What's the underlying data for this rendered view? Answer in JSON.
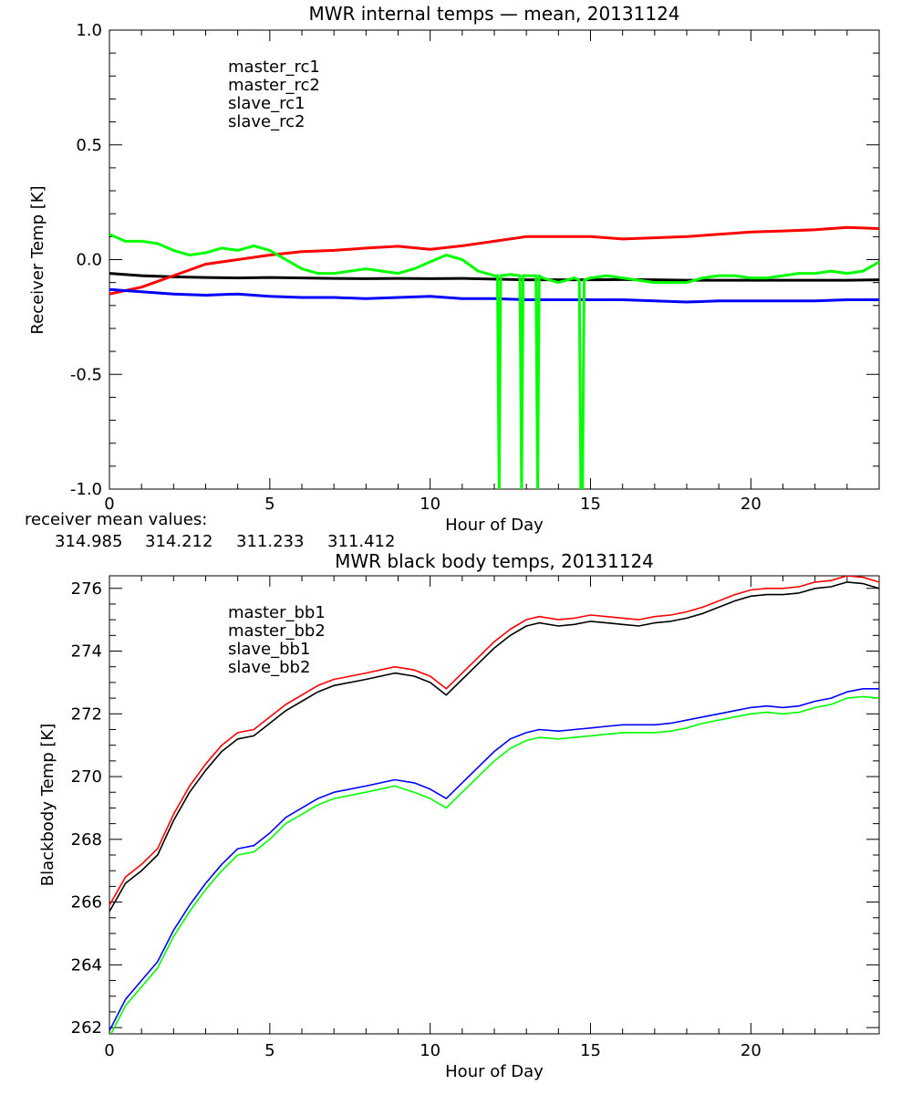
{
  "colors": {
    "black": "#000000",
    "red": "#ff0000",
    "blue": "#0000ff",
    "green": "#00ff00"
  },
  "chart_data": [
    {
      "type": "line",
      "title": "MWR internal temps — mean, 20131124",
      "xlabel": "Hour of Day",
      "ylabel": "Receiver Temp [K]",
      "xlim": [
        0,
        24
      ],
      "ylim": [
        -1.0,
        1.0
      ],
      "xticks": [
        0,
        5,
        10,
        15,
        20
      ],
      "xtick_labels": [
        "0",
        "5",
        "10",
        "15",
        "20"
      ],
      "yticks": [
        -1.0,
        -0.5,
        0.0,
        0.5,
        1.0
      ],
      "ytick_labels": [
        "-1.0",
        "-0.5",
        "0.0",
        "0.5",
        "1.0"
      ],
      "legend_position": "top-left",
      "grid": false,
      "series": [
        {
          "name": "master_rc1",
          "color": "#000000",
          "x": [
            0,
            1,
            2,
            3,
            4,
            5,
            6,
            7,
            8,
            9,
            10,
            11,
            12,
            13,
            14,
            15,
            16,
            17,
            18,
            19,
            20,
            21,
            22,
            23,
            24
          ],
          "y": [
            -0.06,
            -0.07,
            -0.075,
            -0.078,
            -0.08,
            -0.078,
            -0.08,
            -0.082,
            -0.083,
            -0.082,
            -0.083,
            -0.082,
            -0.085,
            -0.088,
            -0.088,
            -0.088,
            -0.087,
            -0.088,
            -0.09,
            -0.09,
            -0.09,
            -0.09,
            -0.09,
            -0.09,
            -0.088
          ]
        },
        {
          "name": "master_rc2",
          "color": "#ff0000",
          "x": [
            0,
            1,
            2,
            3,
            4,
            5,
            6,
            7,
            8,
            9,
            10,
            11,
            12,
            13,
            14,
            15,
            16,
            17,
            18,
            19,
            20,
            21,
            22,
            23,
            24
          ],
          "y": [
            -0.15,
            -0.12,
            -0.07,
            -0.02,
            0.0,
            0.02,
            0.035,
            0.04,
            0.05,
            0.058,
            0.045,
            0.06,
            0.08,
            0.1,
            0.1,
            0.1,
            0.09,
            0.095,
            0.1,
            0.11,
            0.12,
            0.125,
            0.13,
            0.14,
            0.135
          ]
        },
        {
          "name": "slave_rc1",
          "color": "#0000ff",
          "x": [
            0,
            1,
            2,
            3,
            4,
            5,
            6,
            7,
            8,
            9,
            10,
            11,
            12,
            13,
            14,
            15,
            16,
            17,
            18,
            19,
            20,
            21,
            22,
            23,
            24
          ],
          "y": [
            -0.13,
            -0.14,
            -0.15,
            -0.155,
            -0.15,
            -0.16,
            -0.165,
            -0.165,
            -0.17,
            -0.165,
            -0.16,
            -0.17,
            -0.17,
            -0.175,
            -0.175,
            -0.175,
            -0.175,
            -0.18,
            -0.185,
            -0.18,
            -0.18,
            -0.18,
            -0.18,
            -0.175,
            -0.175
          ]
        },
        {
          "name": "slave_rc2",
          "color": "#00ff00",
          "x": [
            0,
            0.5,
            1,
            1.5,
            2,
            2.5,
            3,
            3.5,
            4,
            4.5,
            5,
            5.5,
            6,
            6.5,
            7,
            7.5,
            8,
            8.5,
            9,
            9.5,
            10,
            10.5,
            11,
            11.5,
            12,
            12.1,
            12.15,
            12.2,
            12.5,
            12.8,
            12.85,
            12.9,
            13,
            13.3,
            13.35,
            13.4,
            13.5,
            14,
            14.5,
            14.65,
            14.7,
            14.75,
            14.8,
            15,
            15.5,
            16,
            16.5,
            17,
            17.5,
            18,
            18.5,
            19,
            19.5,
            20,
            20.5,
            21,
            21.5,
            22,
            22.5,
            23,
            23.5,
            24
          ],
          "y": [
            0.11,
            0.08,
            0.08,
            0.07,
            0.04,
            0.02,
            0.03,
            0.05,
            0.04,
            0.06,
            0.04,
            0.0,
            -0.04,
            -0.06,
            -0.06,
            -0.05,
            -0.04,
            -0.05,
            -0.06,
            -0.04,
            -0.01,
            0.02,
            0.0,
            -0.05,
            -0.07,
            -0.07,
            -1.0,
            -0.07,
            -0.065,
            -0.07,
            -1.0,
            -0.07,
            -0.07,
            -0.07,
            -1.0,
            -0.07,
            -0.08,
            -0.1,
            -0.08,
            -0.09,
            -1.0,
            -1.0,
            -0.09,
            -0.08,
            -0.07,
            -0.08,
            -0.09,
            -0.1,
            -0.1,
            -0.1,
            -0.08,
            -0.07,
            -0.07,
            -0.08,
            -0.08,
            -0.07,
            -0.06,
            -0.06,
            -0.05,
            -0.06,
            -0.05,
            -0.01
          ]
        }
      ],
      "mean_values_label": "receiver mean values:",
      "mean_values": [
        "314.985",
        "314.212",
        "311.233",
        "311.412"
      ]
    },
    {
      "type": "line",
      "title": "MWR black body temps, 20131124",
      "xlabel": "Hour of Day",
      "ylabel": "Blackbody Temp [K]",
      "xlim": [
        0,
        24
      ],
      "ylim": [
        261.8,
        276.4
      ],
      "xticks": [
        0,
        5,
        10,
        15,
        20
      ],
      "xtick_labels": [
        "0",
        "5",
        "10",
        "15",
        "20"
      ],
      "yticks": [
        262,
        264,
        266,
        268,
        270,
        272,
        274,
        276
      ],
      "ytick_labels": [
        "262",
        "264",
        "266",
        "268",
        "270",
        "272",
        "274",
        "276"
      ],
      "legend_position": "top-left",
      "grid": false,
      "series": [
        {
          "name": "master_bb1",
          "color": "#000000",
          "x": [
            0,
            0.5,
            1,
            1.5,
            2,
            2.5,
            3,
            3.5,
            4,
            4.5,
            5,
            5.5,
            6,
            6.5,
            7,
            8,
            8.9,
            9.5,
            10,
            10.5,
            11,
            11.5,
            12,
            12.5,
            13,
            13.4,
            14,
            14.5,
            15,
            15.5,
            16,
            16.5,
            17,
            17.5,
            18,
            18.5,
            19,
            19.5,
            20,
            20.5,
            21,
            21.5,
            22,
            22.5,
            23,
            23.5,
            24
          ],
          "y": [
            265.7,
            266.6,
            267.0,
            267.5,
            268.6,
            269.5,
            270.2,
            270.8,
            271.2,
            271.3,
            271.7,
            272.1,
            272.4,
            272.7,
            272.9,
            273.1,
            273.3,
            273.2,
            273.0,
            272.6,
            273.1,
            273.6,
            274.1,
            274.5,
            274.8,
            274.9,
            274.8,
            274.85,
            274.95,
            274.9,
            274.85,
            274.8,
            274.9,
            274.95,
            275.05,
            275.2,
            275.4,
            275.6,
            275.75,
            275.8,
            275.8,
            275.85,
            276.0,
            276.05,
            276.2,
            276.15,
            276.0
          ]
        },
        {
          "name": "master_bb2",
          "color": "#ff0000",
          "x": [
            0,
            0.5,
            1,
            1.5,
            2,
            2.5,
            3,
            3.5,
            4,
            4.5,
            5,
            5.5,
            6,
            6.5,
            7,
            8,
            8.9,
            9.5,
            10,
            10.5,
            11,
            11.5,
            12,
            12.5,
            13,
            13.4,
            14,
            14.5,
            15,
            15.5,
            16,
            16.5,
            17,
            17.5,
            18,
            18.5,
            19,
            19.5,
            20,
            20.5,
            21,
            21.5,
            22,
            22.5,
            23,
            23.5,
            24
          ],
          "y": [
            265.9,
            266.8,
            267.2,
            267.7,
            268.8,
            269.7,
            270.4,
            271.0,
            271.4,
            271.5,
            271.9,
            272.3,
            272.6,
            272.9,
            273.1,
            273.3,
            273.5,
            273.4,
            273.2,
            272.8,
            273.3,
            273.8,
            274.3,
            274.7,
            275.0,
            275.1,
            275.0,
            275.05,
            275.15,
            275.1,
            275.05,
            275.0,
            275.1,
            275.15,
            275.25,
            275.4,
            275.6,
            275.8,
            275.95,
            276.0,
            276.0,
            276.05,
            276.2,
            276.25,
            276.4,
            276.35,
            276.2
          ]
        },
        {
          "name": "slave_bb1",
          "color": "#0000ff",
          "x": [
            0,
            0.5,
            1,
            1.5,
            2,
            2.5,
            3,
            3.5,
            4,
            4.5,
            5,
            5.5,
            6,
            6.5,
            7,
            8,
            8.9,
            9.5,
            10,
            10.5,
            11,
            11.5,
            12,
            12.5,
            13,
            13.4,
            14,
            14.5,
            15,
            15.5,
            16,
            16.5,
            17,
            17.5,
            18,
            18.5,
            19,
            19.5,
            20,
            20.5,
            21,
            21.5,
            22,
            22.5,
            23,
            23.5,
            24
          ],
          "y": [
            261.9,
            262.9,
            263.5,
            264.1,
            265.1,
            265.9,
            266.6,
            267.2,
            267.7,
            267.8,
            268.2,
            268.7,
            269.0,
            269.3,
            269.5,
            269.7,
            269.9,
            269.8,
            269.6,
            269.3,
            269.8,
            270.3,
            270.8,
            271.2,
            271.4,
            271.5,
            271.45,
            271.5,
            271.55,
            271.6,
            271.65,
            271.65,
            271.65,
            271.7,
            271.8,
            271.9,
            272.0,
            272.1,
            272.2,
            272.25,
            272.2,
            272.25,
            272.4,
            272.5,
            272.7,
            272.8,
            272.8
          ]
        },
        {
          "name": "slave_bb2",
          "color": "#00ff00",
          "x": [
            0,
            0.5,
            1,
            1.5,
            2,
            2.5,
            3,
            3.5,
            4,
            4.5,
            5,
            5.5,
            6,
            6.5,
            7,
            8,
            8.9,
            9.5,
            10,
            10.5,
            11,
            11.5,
            12,
            12.5,
            13,
            13.4,
            14,
            14.5,
            15,
            15.5,
            16,
            16.5,
            17,
            17.5,
            18,
            18.5,
            19,
            19.5,
            20,
            20.5,
            21,
            21.5,
            22,
            22.5,
            23,
            23.5,
            24
          ],
          "y": [
            261.7,
            262.7,
            263.3,
            263.9,
            264.9,
            265.7,
            266.4,
            267.0,
            267.5,
            267.6,
            268.0,
            268.5,
            268.8,
            269.1,
            269.3,
            269.5,
            269.7,
            269.5,
            269.3,
            269.0,
            269.5,
            270.0,
            270.5,
            270.9,
            271.15,
            271.25,
            271.2,
            271.25,
            271.3,
            271.35,
            271.4,
            271.4,
            271.4,
            271.45,
            271.55,
            271.7,
            271.8,
            271.9,
            272.0,
            272.05,
            272.0,
            272.05,
            272.2,
            272.3,
            272.5,
            272.55,
            272.5
          ]
        }
      ]
    }
  ]
}
